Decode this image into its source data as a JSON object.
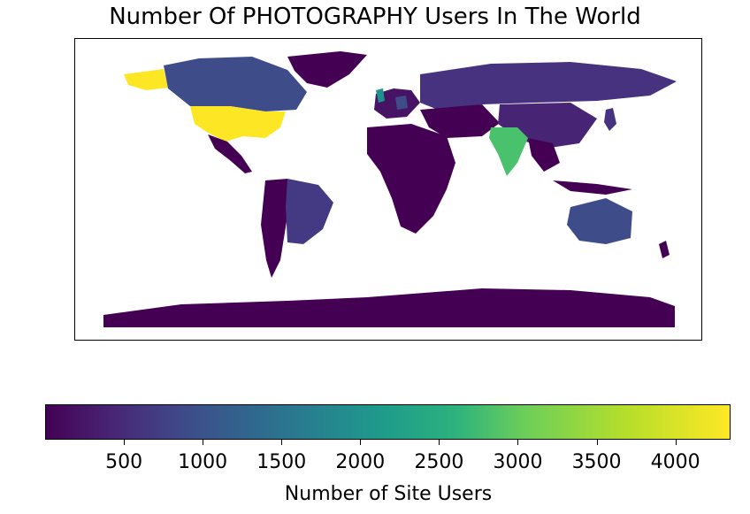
{
  "title": "Number Of PHOTOGRAPHY Users In The World",
  "colorbar": {
    "label": "Number of Site Users",
    "min": 0,
    "max": 4350,
    "colormap": "viridis",
    "ticks": [
      500,
      1000,
      1500,
      2000,
      2500,
      3000,
      3500,
      4000
    ],
    "tick_labels": [
      "500",
      "1000",
      "1500",
      "2000",
      "2500",
      "3000",
      "3500",
      "4000"
    ]
  },
  "chart_data": {
    "type": "heatmap",
    "kind": "choropleth-world-map",
    "title": "Number Of PHOTOGRAPHY Users In The World",
    "value_label": "Number of Site Users",
    "range": [
      0,
      4350
    ],
    "regions": [
      {
        "region": "United States",
        "value": 4300
      },
      {
        "region": "India",
        "value": 3300
      },
      {
        "region": "United Kingdom",
        "value": 2300
      },
      {
        "region": "Canada",
        "value": 1150
      },
      {
        "region": "Australia",
        "value": 1000
      },
      {
        "region": "Germany",
        "value": 1000
      },
      {
        "region": "Brazil",
        "value": 600
      },
      {
        "region": "Russia",
        "value": 350
      },
      {
        "region": "China",
        "value": 250
      },
      {
        "region": "Antarctica",
        "value": 0
      },
      {
        "region": "Greenland",
        "value": 0
      },
      {
        "region": "Africa (most countries)",
        "value": 50
      }
    ]
  }
}
